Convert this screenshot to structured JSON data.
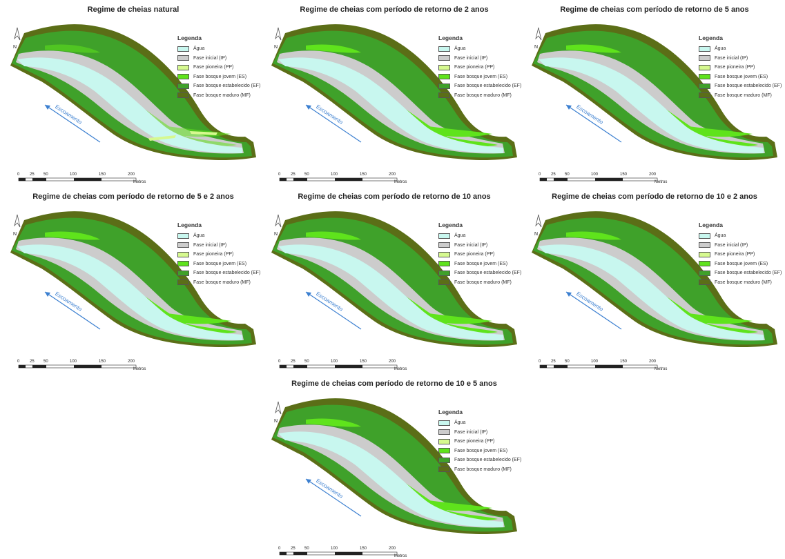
{
  "panels": [
    {
      "title": "Regime de cheias natural",
      "variant": "natural"
    },
    {
      "title": "Regime de cheias com período de retorno de 2 anos",
      "variant": "forest"
    },
    {
      "title": "Regime de cheias com período de retorno de 5 anos",
      "variant": "forest"
    },
    {
      "title": "Regime de cheias com período de retorno de 5 e 2 anos",
      "variant": "forest"
    },
    {
      "title": "Regime de cheias com período de retorno de 10 anos",
      "variant": "forest"
    },
    {
      "title": "Regime de cheias com período de retorno de 10 e 2 anos",
      "variant": "forest"
    },
    {
      "title": "Regime de cheias com período de retorno de 10 e 5 anos",
      "variant": "forest"
    }
  ],
  "legend": {
    "title": "Legenda",
    "items": [
      {
        "label": "Água",
        "color": "#c8f7ef"
      },
      {
        "label": "Fase inicial (IP)",
        "color": "#cccccc"
      },
      {
        "label": "Fase pioneira (PP)",
        "color": "#d6f98f"
      },
      {
        "label": "Fase bosque jovem (ES)",
        "color": "#5fe31c"
      },
      {
        "label": "Fase bosque estabelecido (EF)",
        "color": "#3fa12a"
      },
      {
        "label": "Fase bosque maduro (MF)",
        "color": "#5b6e17"
      }
    ]
  },
  "north_label": "N",
  "flow_label": "Escoamento",
  "scale": {
    "ticks": [
      "0",
      "25",
      "50",
      "100",
      "150",
      "200"
    ],
    "unit": "Metros"
  }
}
